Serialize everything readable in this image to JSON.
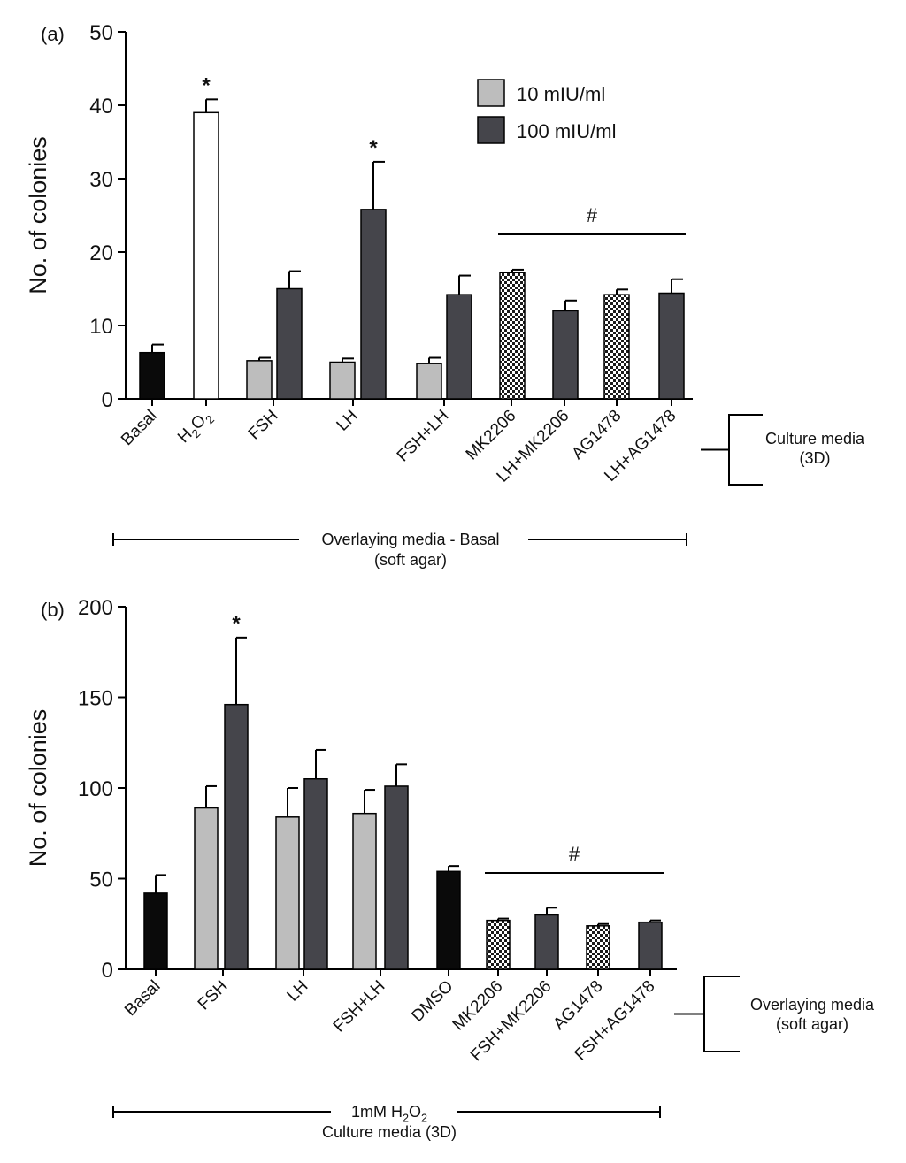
{
  "colors": {
    "basal": "#0a0a0a",
    "h2o2": "#ffffff",
    "dose_low": "#bdbdbd",
    "dose_high": "#45454b",
    "inhibitor_checker_dark": "#1a1a1a",
    "inhibitor_checker_light": "#ffffff",
    "axis": "#000000"
  },
  "chart_data": [
    {
      "type": "bar",
      "panel_label": "(a)",
      "ylabel": "No. of colonies",
      "ylim": [
        0,
        50
      ],
      "yticks": [
        "0",
        "10",
        "20",
        "30",
        "40",
        "50"
      ],
      "legend": {
        "position": "top-right",
        "entries": [
          {
            "label": "10 mIU/ml",
            "color": "dose_low"
          },
          {
            "label": "100 mIU/ml",
            "color": "dose_high"
          }
        ]
      },
      "categories": [
        "Basal",
        "H2O2",
        "FSH",
        "LH",
        "FSH+LH",
        "MK2206",
        "LH+MK2206",
        "AG1478",
        "LH+AG1478"
      ],
      "bars": [
        {
          "category": "Basal",
          "series": "basal",
          "value": 6.3,
          "error": 1.1
        },
        {
          "category": "H2O2",
          "series": "h2o2",
          "value": 39,
          "error": 1.8,
          "annotation": "*"
        },
        {
          "category": "FSH",
          "series": "dose_low",
          "value": 5.2,
          "error": 0.4
        },
        {
          "category": "FSH",
          "series": "dose_high",
          "value": 15,
          "error": 2.4
        },
        {
          "category": "LH",
          "series": "dose_low",
          "value": 5,
          "error": 0.5
        },
        {
          "category": "LH",
          "series": "dose_high",
          "value": 25.8,
          "error": 6.5,
          "annotation": "*"
        },
        {
          "category": "FSH+LH",
          "series": "dose_low",
          "value": 4.8,
          "error": 0.8
        },
        {
          "category": "FSH+LH",
          "series": "dose_high",
          "value": 14.2,
          "error": 2.6
        },
        {
          "category": "MK2206",
          "series": "checker",
          "value": 17.2,
          "error": 0.4
        },
        {
          "category": "LH+MK2206",
          "series": "dose_high",
          "value": 12,
          "error": 1.4
        },
        {
          "category": "AG1478",
          "series": "checker",
          "value": 14.2,
          "error": 0.7
        },
        {
          "category": "LH+AG1478",
          "series": "dose_high",
          "value": 14.4,
          "error": 1.9
        }
      ],
      "significance": {
        "label": "#",
        "from_category": "MK2206",
        "to_category": "LH+AG1478"
      },
      "bracket_label": [
        "Culture media",
        "(3D)"
      ],
      "bottom_label": [
        "Overlaying media - Basal",
        "(soft agar)"
      ]
    },
    {
      "type": "bar",
      "panel_label": "(b)",
      "ylabel": "No. of colonies",
      "ylim": [
        0,
        200
      ],
      "yticks": [
        "0",
        "50",
        "100",
        "150",
        "200"
      ],
      "categories": [
        "Basal",
        "FSH",
        "LH",
        "FSH+LH",
        "DMSO",
        "MK2206",
        "FSH+MK2206",
        "AG1478",
        "FSH+AG1478"
      ],
      "bars": [
        {
          "category": "Basal",
          "series": "basal",
          "value": 42,
          "error": 10
        },
        {
          "category": "FSH",
          "series": "dose_low",
          "value": 89,
          "error": 12
        },
        {
          "category": "FSH",
          "series": "dose_high",
          "value": 146,
          "error": 37,
          "annotation": "*"
        },
        {
          "category": "LH",
          "series": "dose_low",
          "value": 84,
          "error": 16
        },
        {
          "category": "LH",
          "series": "dose_high",
          "value": 105,
          "error": 16
        },
        {
          "category": "FSH+LH",
          "series": "dose_low",
          "value": 86,
          "error": 13
        },
        {
          "category": "FSH+LH",
          "series": "dose_high",
          "value": 101,
          "error": 12
        },
        {
          "category": "DMSO",
          "series": "basal",
          "value": 54,
          "error": 3
        },
        {
          "category": "MK2206",
          "series": "checker",
          "value": 27,
          "error": 1
        },
        {
          "category": "FSH+MK2206",
          "series": "dose_high",
          "value": 30,
          "error": 4
        },
        {
          "category": "AG1478",
          "series": "checker",
          "value": 24,
          "error": 1
        },
        {
          "category": "FSH+AG1478",
          "series": "dose_high",
          "value": 26,
          "error": 1
        }
      ],
      "significance": {
        "label": "#",
        "from_category": "MK2206",
        "to_category": "FSH+AG1478"
      },
      "bracket_label": [
        "Overlaying media",
        "(soft agar)"
      ],
      "bottom_label": [
        "1mM H2O2",
        "Culture media (3D)"
      ]
    }
  ]
}
